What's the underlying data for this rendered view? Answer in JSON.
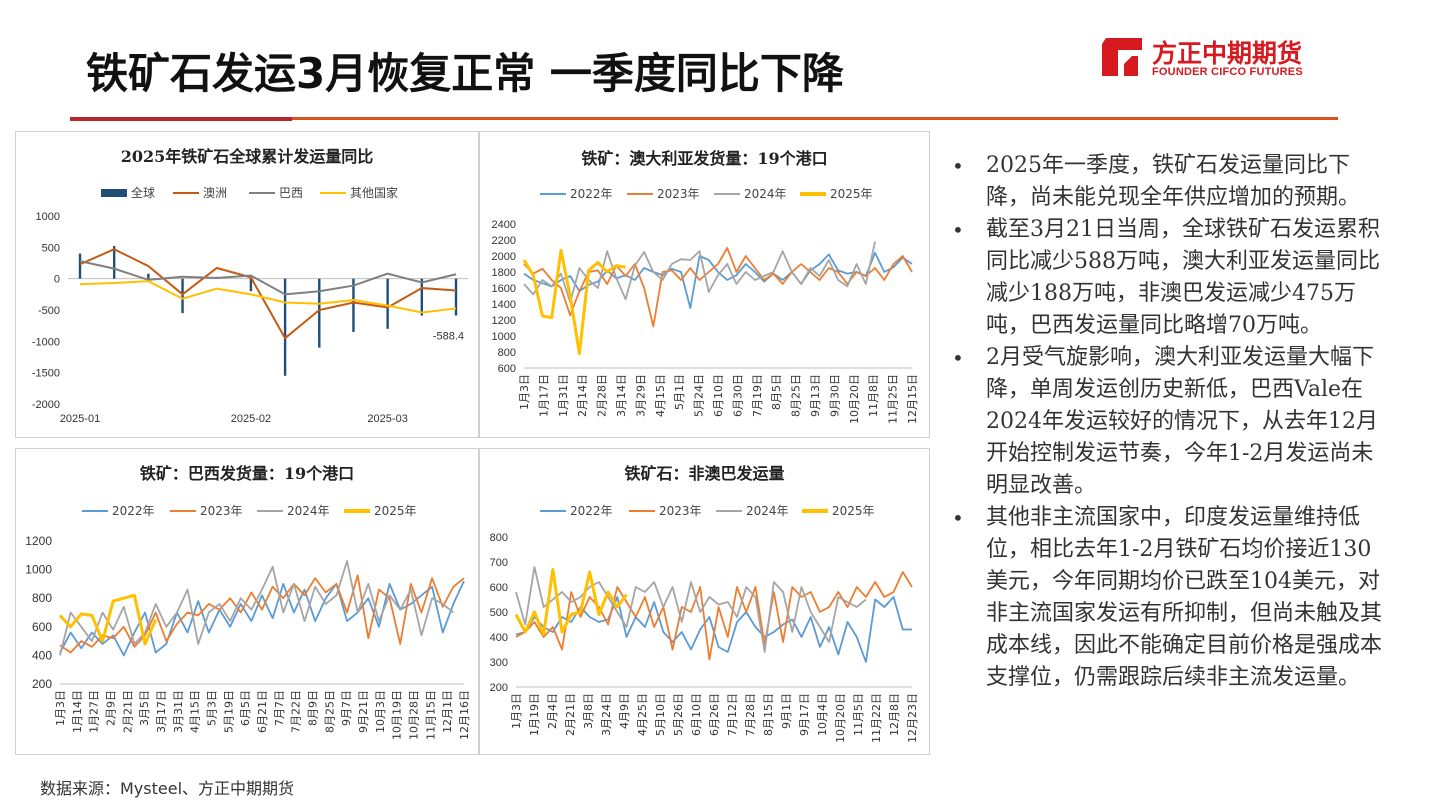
{
  "slide": {
    "title": "铁矿石发运3月恢复正常 一季度同比下降",
    "logo_cn": "方正中期期货",
    "logo_en": "FOUNDER CIFCO FUTURES",
    "source": "数据来源：Mysteel、方正中期期货",
    "accent_color": "#d71920"
  },
  "bullets": [
    "2025年一季度，铁矿石发运量同比下降，尚未能兑现全年供应增加的预期。",
    "截至3月21日当周，全球铁矿石发运累积同比减少588万吨，澳大利亚发运量同比减少188万吨，非澳巴发运减少475万吨，巴西发运量同比略增70万吨。",
    "2月受气旋影响，澳大利亚发运量大幅下降，单周发运创历史新低，巴西Vale在2024年发运较好的情况下，从去年12月开始控制发运节奏，今年1-2月发运尚未明显改善。",
    "其他非主流国家中，印度发运量维持低位，相比去年1-2月铁矿石均价接近130美元，今年同期均价已跌至104美元，对非主流国家发运有所抑制，但尚未触及其成本线，因此不能确定目前价格是强成本支撑位，仍需跟踪后续非主流发运量。"
  ],
  "chart_data": [
    {
      "type": "bar+line",
      "title": "2025年铁矿石全球累计发运量同比",
      "legend": [
        "全球",
        "澳洲",
        "巴西",
        "其他国家"
      ],
      "colors": [
        "#1f4e79",
        "#c55a11",
        "#7f7f7f",
        "#ffc000"
      ],
      "ylim": [
        -2000,
        1000
      ],
      "yticks": [
        1000,
        500,
        0,
        -500,
        -1000,
        -1500,
        -2000
      ],
      "xticklabels": [
        "2025-01",
        "2025-02",
        "2025-03"
      ],
      "xtick_positions": [
        0,
        5,
        9
      ],
      "annotation": "-588.4",
      "series": [
        {
          "name": "全球",
          "kind": "bar",
          "values": [
            400,
            520,
            80,
            -550,
            30,
            -200,
            -1550,
            -1100,
            -850,
            -800,
            -590,
            -588.4
          ]
        },
        {
          "name": "澳洲",
          "kind": "line",
          "values": [
            230,
            470,
            200,
            -250,
            170,
            20,
            -950,
            -500,
            -380,
            -460,
            -150,
            -188
          ]
        },
        {
          "name": "巴西",
          "kind": "line",
          "values": [
            280,
            160,
            -20,
            30,
            10,
            50,
            -250,
            -200,
            -110,
            80,
            -60,
            70
          ]
        },
        {
          "name": "其他国家",
          "kind": "line",
          "values": [
            -90,
            -70,
            -40,
            -320,
            -160,
            -250,
            -380,
            -400,
            -340,
            -430,
            -540,
            -475
          ]
        }
      ]
    },
    {
      "type": "line",
      "title": "铁矿：澳大利亚发货量：19个港口",
      "legend": [
        "2022年",
        "2023年",
        "2024年",
        "2025年"
      ],
      "colors": [
        "#5b9bd5",
        "#ed7d31",
        "#a5a5a5",
        "#ffc000"
      ],
      "ylim": [
        600,
        2400
      ],
      "yticks": [
        2400,
        2200,
        2000,
        1800,
        1600,
        1400,
        1200,
        1000,
        800,
        600
      ],
      "xticklabels": [
        "1月3日",
        "1月17日",
        "1月31日",
        "2月14日",
        "2月28日",
        "3月14日",
        "3月29日",
        "4月15日",
        "5月1日",
        "5月24日",
        "6月10日",
        "6月30日",
        "7月19日",
        "8月5日",
        "8月25日",
        "9月13日",
        "9月30日",
        "10月20日",
        "11月8日",
        "11月25日",
        "12月15日"
      ],
      "series": [
        {
          "name": "2022年",
          "values": [
            1780,
            1700,
            1660,
            1620,
            1700,
            1750,
            1560,
            1640,
            1680,
            1820,
            1720,
            1760,
            1700,
            1850,
            1800,
            1760,
            1840,
            1800,
            1350,
            2000,
            1950,
            1800,
            1700,
            1760,
            1900,
            1800,
            1680,
            1780,
            1700,
            1800,
            1650,
            1820,
            1900,
            2020,
            1820,
            1780,
            1800,
            1750,
            2040,
            1800,
            1860,
            1980,
            1900
          ]
        },
        {
          "name": "2023年",
          "values": [
            1900,
            1780,
            1840,
            1700,
            1600,
            1260,
            1560,
            1800,
            1820,
            1650,
            1880,
            1750,
            1900,
            1600,
            1120,
            1800,
            1820,
            1700,
            1850,
            1700,
            1800,
            1900,
            2100,
            1800,
            2000,
            1850,
            1700,
            1780,
            1650,
            1800,
            1900,
            1800,
            1700,
            1850,
            1800,
            1650,
            1800,
            1750,
            1850,
            1700,
            1900,
            2000,
            1800
          ]
        },
        {
          "name": "2024年",
          "values": [
            1650,
            1520,
            1700,
            1620,
            1780,
            1420,
            1850,
            1700,
            1600,
            2060,
            1720,
            1460,
            1880,
            2050,
            1800,
            1700,
            1900,
            1960,
            1950,
            2060,
            1550,
            1760,
            1900,
            1650,
            1800,
            1700,
            1750,
            1800,
            2060,
            1800,
            1650,
            1850,
            1750,
            1950,
            1700,
            1620,
            1900,
            1650,
            2180
          ]
        },
        {
          "name": "2025年",
          "values": [
            1950,
            1760,
            1250,
            1230,
            2070,
            1500,
            780,
            1820,
            1920,
            1800,
            1880,
            1860
          ]
        }
      ]
    },
    {
      "type": "line",
      "title": "铁矿：巴西发货量：19个港口",
      "legend": [
        "2022年",
        "2023年",
        "2024年",
        "2025年"
      ],
      "colors": [
        "#5b9bd5",
        "#ed7d31",
        "#a5a5a5",
        "#ffc000"
      ],
      "ylim": [
        200,
        1200
      ],
      "yticks": [
        1200,
        1000,
        800,
        600,
        400,
        200
      ],
      "xticklabels": [
        "1月3日",
        "1月14日",
        "1月27日",
        "2月9日",
        "2月21日",
        "3月5日",
        "3月17日",
        "3月31日",
        "4月15日",
        "5月3日",
        "5月19日",
        "6月5日",
        "6月21日",
        "7月7日",
        "7月22日",
        "8月9日",
        "8月25日",
        "9月7日",
        "9月21日",
        "10月3日",
        "10月19日",
        "10月28日",
        "11月15日",
        "12月1日",
        "12月16日"
      ],
      "series": [
        {
          "name": "2022年",
          "values": [
            420,
            560,
            450,
            560,
            480,
            540,
            400,
            560,
            700,
            420,
            480,
            700,
            560,
            780,
            560,
            720,
            600,
            760,
            640,
            820,
            660,
            900,
            700,
            860,
            640,
            800,
            900,
            640,
            700,
            800,
            600,
            900,
            720,
            760,
            820,
            880,
            560,
            760,
            920
          ]
        },
        {
          "name": "2023年",
          "values": [
            470,
            420,
            500,
            460,
            540,
            520,
            600,
            460,
            540,
            700,
            500,
            620,
            700,
            680,
            760,
            720,
            800,
            700,
            840,
            720,
            880,
            800,
            900,
            820,
            940,
            840,
            900,
            700,
            960,
            520,
            860,
            800,
            480,
            900,
            700,
            940,
            740,
            880,
            940
          ]
        },
        {
          "name": "2024年",
          "values": [
            400,
            700,
            600,
            500,
            700,
            580,
            740,
            480,
            560,
            760,
            600,
            700,
            860,
            480,
            700,
            760,
            640,
            800,
            720,
            860,
            1020,
            700,
            900,
            640,
            880,
            760,
            820,
            1060,
            700,
            900,
            640,
            820,
            720,
            860,
            540,
            800,
            760,
            700
          ]
        },
        {
          "name": "2025年",
          "values": [
            680,
            600,
            690,
            680,
            500,
            780,
            800,
            820,
            480,
            650
          ]
        }
      ]
    },
    {
      "type": "line",
      "title": "铁矿石：非澳巴发运量",
      "legend": [
        "2022年",
        "2023年",
        "2024年",
        "2025年"
      ],
      "colors": [
        "#5b9bd5",
        "#ed7d31",
        "#a5a5a5",
        "#ffc000"
      ],
      "ylim": [
        200,
        800
      ],
      "yticks": [
        800,
        700,
        600,
        500,
        400,
        300,
        200
      ],
      "xticklabels": [
        "1月3日",
        "1月19日",
        "2月4日",
        "2月21日",
        "3月8日",
        "3月24日",
        "4月9日",
        "4月25日",
        "5月10日",
        "5月26日",
        "6月10日",
        "6月26日",
        "7月12日",
        "7月28日",
        "8月15日",
        "9月1日",
        "9月17日",
        "10月4日",
        "10月20日",
        "11月5日",
        "11月22日",
        "12月8日",
        "12月23日"
      ],
      "series": [
        {
          "name": "2022年",
          "values": [
            410,
            420,
            480,
            440,
            420,
            480,
            460,
            520,
            480,
            460,
            470,
            560,
            400,
            480,
            440,
            540,
            420,
            380,
            420,
            350,
            430,
            480,
            360,
            340,
            460,
            500,
            440,
            400,
            420,
            450,
            470,
            400,
            480,
            360,
            440,
            330,
            460,
            400,
            300,
            550,
            520,
            560,
            430,
            430
          ]
        },
        {
          "name": "2023年",
          "values": [
            400,
            420,
            460,
            400,
            440,
            350,
            580,
            480,
            560,
            520,
            450,
            600,
            540,
            480,
            560,
            440,
            520,
            350,
            520,
            500,
            600,
            310,
            520,
            400,
            600,
            500,
            600,
            370,
            580,
            380,
            600,
            560,
            580,
            500,
            520,
            580,
            520,
            600,
            560,
            620,
            560,
            580,
            660,
            600
          ]
        },
        {
          "name": "2024年",
          "values": [
            580,
            450,
            680,
            520,
            550,
            580,
            540,
            560,
            600,
            620,
            560,
            500,
            440,
            600,
            580,
            620,
            520,
            600,
            460,
            620,
            500,
            560,
            530,
            540,
            480,
            600,
            560,
            340,
            620,
            580,
            420,
            600,
            500,
            440,
            380,
            560,
            540,
            520,
            550
          ]
        },
        {
          "name": "2025年",
          "values": [
            490,
            420,
            500,
            410,
            670,
            420,
            490,
            500,
            660,
            490,
            580,
            520,
            570
          ]
        }
      ]
    }
  ]
}
